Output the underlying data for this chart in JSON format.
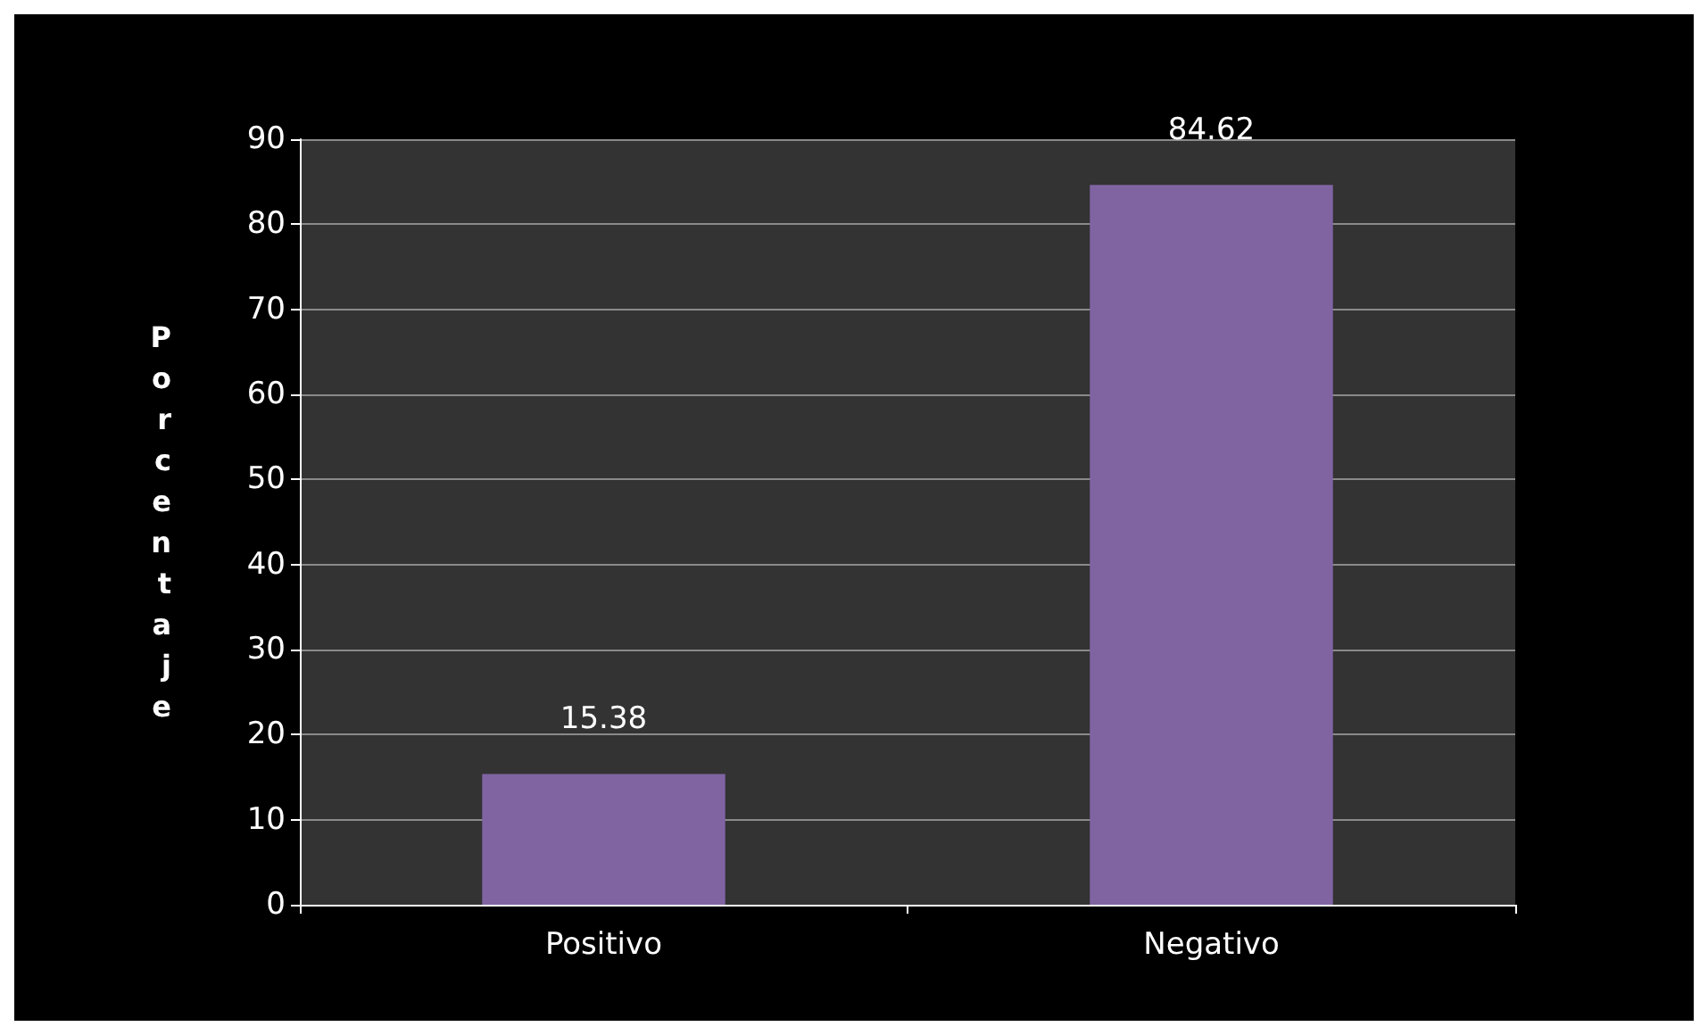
{
  "chart_data": {
    "type": "bar",
    "ylabel": "Porcentaje",
    "categories": [
      "Positivo",
      "Negativo"
    ],
    "values": [
      15.38,
      84.62
    ],
    "color": "#8064a2",
    "ylim": [
      0,
      90
    ],
    "yticks": [
      0,
      10,
      20,
      30,
      40,
      50,
      60,
      70,
      80,
      90
    ],
    "grid": "y",
    "data_labels": true
  }
}
